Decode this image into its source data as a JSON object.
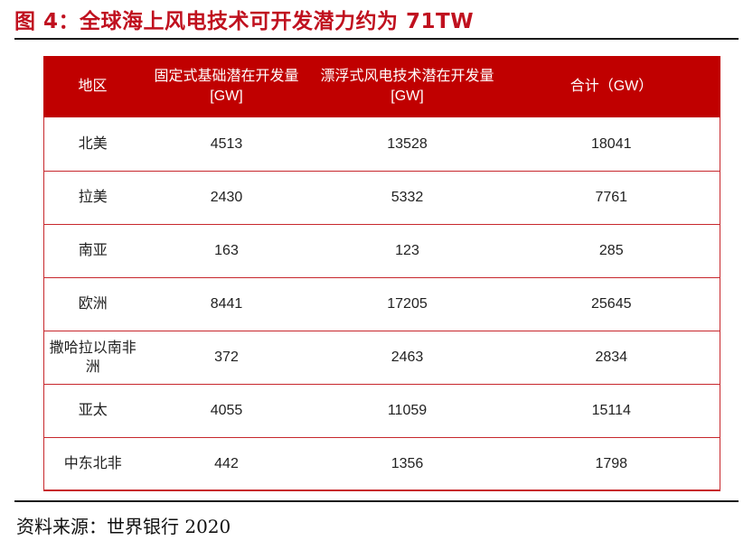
{
  "figure": {
    "title": "图 4：全球海上风电技术可开发潜力约为 71TW",
    "source": "资料来源：世界银行 2020"
  },
  "table": {
    "headers": [
      "地区",
      "固定式基础潜在开发量 [GW]",
      "漂浮式风电技术潜在开发量 [GW]",
      "合计（GW）"
    ],
    "rows": [
      [
        "北美",
        "4513",
        "13528",
        "18041"
      ],
      [
        "拉美",
        "2430",
        "5332",
        "7761"
      ],
      [
        "南亚",
        "163",
        "123",
        "285"
      ],
      [
        "欧洲",
        "8441",
        "17205",
        "25645"
      ],
      [
        "撒哈拉以南非洲",
        "372",
        "2463",
        "2834"
      ],
      [
        "亚太",
        "4055",
        "11059",
        "15114"
      ],
      [
        "中东北非",
        "442",
        "1356",
        "1798"
      ]
    ]
  },
  "colors": {
    "title": "#c0111f",
    "header_bg": "#c00000",
    "grid_line": "#c7272c"
  }
}
